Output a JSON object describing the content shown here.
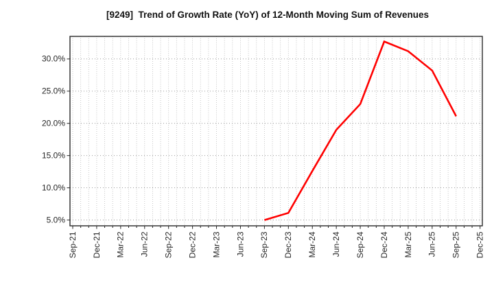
{
  "title": "[9249]  Trend of Growth Rate (YoY) of 12-Month Moving Sum of Revenues",
  "colors": {
    "line": "#ff0000",
    "background": "#ffffff",
    "spine": "#262626",
    "grid_vertical": "#b9b9b9",
    "grid_horizontal": "#8a8a8a",
    "tick_label": "#262626",
    "title_text": "#111111"
  },
  "chart_data": {
    "type": "line",
    "title": "[9249]  Trend of Growth Rate (YoY) of 12-Month Moving Sum of Revenues",
    "xlabel": "",
    "ylabel": "",
    "legend": "none",
    "grid": {
      "vertical": "dotted line at every month",
      "horizontal": "dotted line at every 5% tick"
    },
    "x_tick_labels": [
      "Sep-21",
      "Dec-21",
      "Mar-22",
      "Jun-22",
      "Sep-22",
      "Dec-22",
      "Mar-23",
      "Jun-23",
      "Sep-23",
      "Dec-23",
      "Mar-24",
      "Jun-24",
      "Sep-24",
      "Dec-24",
      "Mar-25",
      "Jun-25",
      "Sep-25",
      "Dec-25"
    ],
    "months_per_label": 3,
    "ylim": [
      4.1,
      33.5
    ],
    "y_ticks": [
      {
        "value": 5,
        "label": "5.0%"
      },
      {
        "value": 10,
        "label": "10.0%"
      },
      {
        "value": 15,
        "label": "15.0%"
      },
      {
        "value": 20,
        "label": "20.0%"
      },
      {
        "value": 25,
        "label": "25.0%"
      },
      {
        "value": 30,
        "label": "30.0%"
      }
    ],
    "series": [
      {
        "name": "Growth Rate (YoY) of 12-Month Moving Sum of Revenues",
        "color": "#ff0000",
        "points": [
          {
            "x": "Sep-23",
            "y": 5.0
          },
          {
            "x": "Dec-23",
            "y": 6.1
          },
          {
            "x": "Mar-24",
            "y": 12.6
          },
          {
            "x": "Jun-24",
            "y": 19.0
          },
          {
            "x": "Sep-24",
            "y": 23.0
          },
          {
            "x": "Dec-24",
            "y": 32.7
          },
          {
            "x": "Mar-25",
            "y": 31.2
          },
          {
            "x": "Jun-25",
            "y": 28.2
          },
          {
            "x": "Sep-25",
            "y": 21.1
          }
        ]
      }
    ]
  }
}
